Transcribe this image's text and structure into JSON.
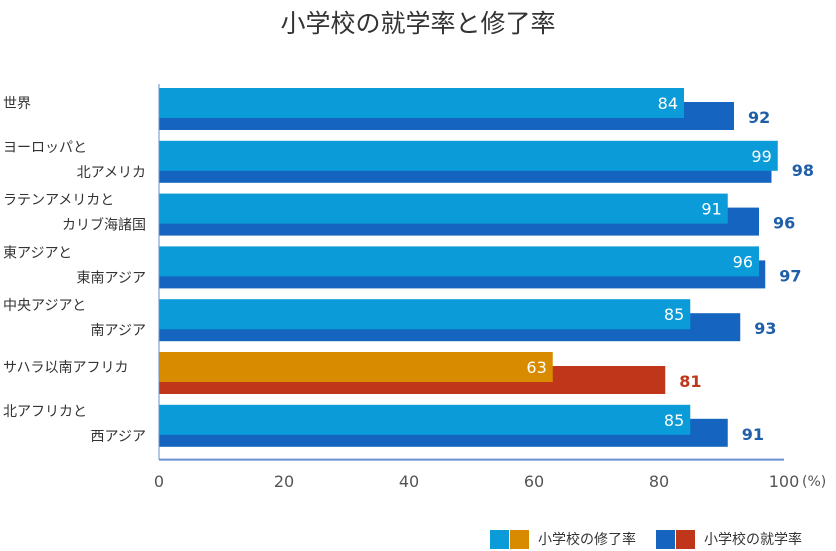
{
  "chart_data": {
    "type": "bar",
    "orientation": "horizontal",
    "title": "小学校の就学率と修了率",
    "unit_label": "(%)",
    "xlim": [
      0,
      100
    ],
    "x_ticks": [
      "0",
      "20",
      "40",
      "60",
      "80",
      "100"
    ],
    "categories": [
      [
        "世界"
      ],
      [
        "ヨーロッパと",
        "北アメリカ"
      ],
      [
        "ラテンアメリカと",
        "カリブ海諸国"
      ],
      [
        "東アジアと",
        "東南アジア"
      ],
      [
        "中央アジアと",
        "南アジア"
      ],
      [
        "サハラ以南アフリカ"
      ],
      [
        "北アフリカと",
        "西アジア"
      ]
    ],
    "series": [
      {
        "name": "小学校の修了率",
        "values": [
          84,
          99,
          91,
          96,
          85,
          63,
          85
        ]
      },
      {
        "name": "小学校の就学率",
        "values": [
          92,
          98,
          96,
          97,
          93,
          81,
          91
        ]
      }
    ],
    "highlight_category_index": 5,
    "colors": {
      "completion": "#0a9bd8",
      "enrollment": "#1565c0",
      "completion_highlight": "#d98b00",
      "enrollment_highlight": "#c0361a",
      "enrollment_label": "#1f5faa",
      "enrollment_label_highlight": "#c0361a",
      "axis": "#6a8fd0",
      "tick_text": "#555555"
    },
    "grid": false,
    "legend_position": "bottom-right"
  }
}
